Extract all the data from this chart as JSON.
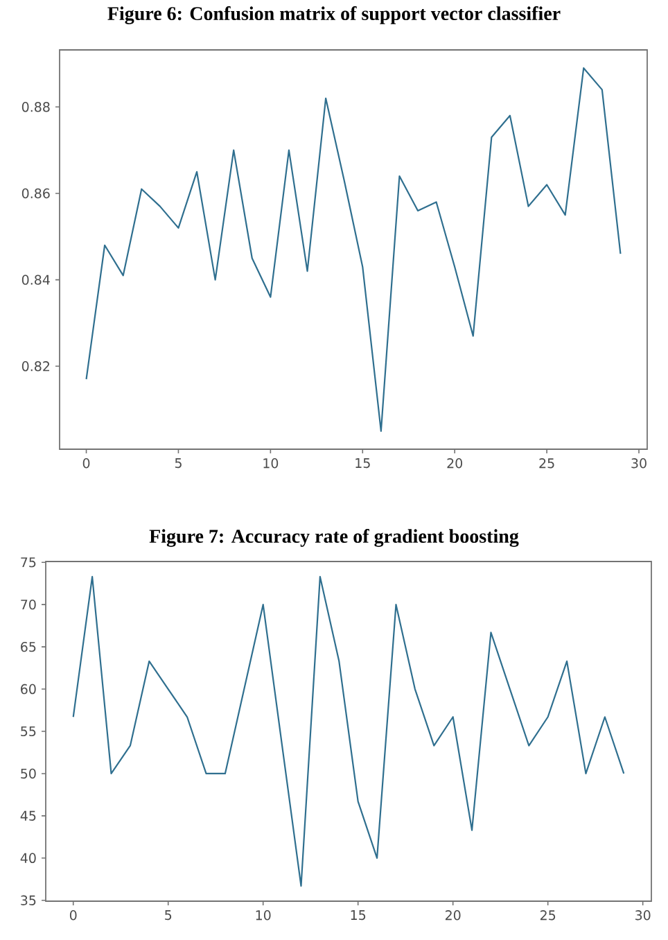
{
  "chart_data": [
    {
      "type": "line",
      "title": "Figure 6: Confusion matrix of support vector classifier",
      "color": "#2f6f8f",
      "x": [
        0,
        1,
        2,
        3,
        4,
        5,
        6,
        7,
        8,
        9,
        10,
        11,
        12,
        13,
        14,
        15,
        16,
        17,
        18,
        19,
        20,
        21,
        22,
        23,
        24,
        25,
        26,
        27,
        28,
        29
      ],
      "values": [
        0.817,
        0.848,
        0.841,
        0.861,
        0.857,
        0.852,
        0.865,
        0.84,
        0.87,
        0.845,
        0.836,
        0.87,
        0.842,
        0.882,
        0.863,
        0.843,
        0.805,
        0.864,
        0.856,
        0.858,
        0.843,
        0.827,
        0.873,
        0.878,
        0.857,
        0.862,
        0.855,
        0.889,
        0.884,
        0.846
      ],
      "xlim": [
        -1.45,
        30.45
      ],
      "ylim": [
        0.8008,
        0.8932
      ],
      "xticks": [
        0,
        5,
        10,
        15,
        20,
        25,
        30
      ],
      "yticks": [
        0.82,
        0.84,
        0.86,
        0.88
      ]
    },
    {
      "type": "line",
      "title": "Figure 7: Accuracy rate of gradient boosting",
      "color": "#2f6f8f",
      "x": [
        0,
        1,
        2,
        3,
        4,
        5,
        6,
        7,
        8,
        9,
        10,
        11,
        12,
        13,
        14,
        15,
        16,
        17,
        18,
        19,
        20,
        21,
        22,
        23,
        24,
        25,
        26,
        27,
        28,
        29
      ],
      "values": [
        56.7,
        73.3,
        50,
        53.3,
        63.3,
        60,
        56.7,
        50,
        50,
        60,
        70,
        53.3,
        36.7,
        73.3,
        63.3,
        46.7,
        40,
        70,
        60,
        53.3,
        56.7,
        43.3,
        66.7,
        60,
        53.3,
        56.7,
        63.3,
        50,
        56.7,
        50
      ],
      "xlim": [
        -1.45,
        30.45
      ],
      "ylim": [
        34.9,
        75.1
      ],
      "xticks": [
        0,
        5,
        10,
        15,
        20,
        25,
        30
      ],
      "yticks": [
        35,
        40,
        45,
        50,
        55,
        60,
        65,
        70,
        75
      ]
    }
  ]
}
